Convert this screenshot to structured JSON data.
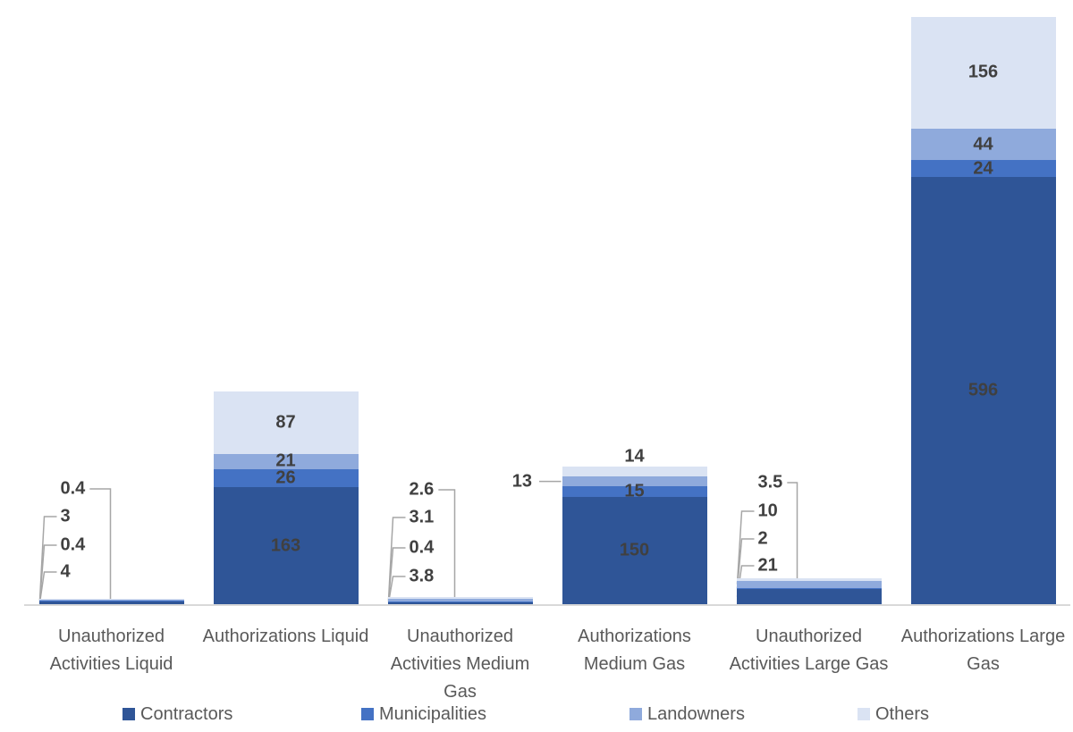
{
  "chart_data": {
    "type": "bar",
    "stacked": true,
    "title": "",
    "xlabel": "",
    "ylabel": "",
    "ylim": [
      0,
      820
    ],
    "grid": false,
    "legend_position": "bottom",
    "categories": [
      "Unauthorized Activities Liquid",
      "Authorizations Liquid",
      "Unauthorized Activities Medium Gas",
      "Authorizations Medium Gas",
      "Unauthorized Activities Large Gas",
      "Authorizations Large Gas"
    ],
    "series": [
      {
        "name": "Contractors",
        "color": "#2F5597",
        "values": [
          4,
          163,
          3.8,
          150,
          21,
          596
        ]
      },
      {
        "name": "Municipalities",
        "color": "#4472C4",
        "values": [
          0.4,
          26,
          0.4,
          15,
          2,
          24
        ]
      },
      {
        "name": "Landowners",
        "color": "#8FAADC",
        "values": [
          3,
          21,
          3.1,
          13,
          10,
          44
        ]
      },
      {
        "name": "Others",
        "color": "#DAE3F3",
        "values": [
          0.4,
          87,
          2.6,
          14,
          3.5,
          156
        ]
      }
    ],
    "label_placements": [
      [
        "callout",
        "callout",
        "callout",
        "callout"
      ],
      [
        "inside",
        "inside",
        "inside",
        "inside"
      ],
      [
        "callout",
        "callout",
        "callout",
        "callout"
      ],
      [
        "inside",
        "inside",
        "left",
        "above"
      ],
      [
        "callout",
        "callout",
        "callout",
        "callout"
      ],
      [
        "inside",
        "inside",
        "inside",
        "inside"
      ]
    ],
    "colors": {
      "data_label": "#404040",
      "axis_text": "#595959",
      "axis_line": "#d9d9d9",
      "leader_line": "#a6a6a6"
    }
  }
}
